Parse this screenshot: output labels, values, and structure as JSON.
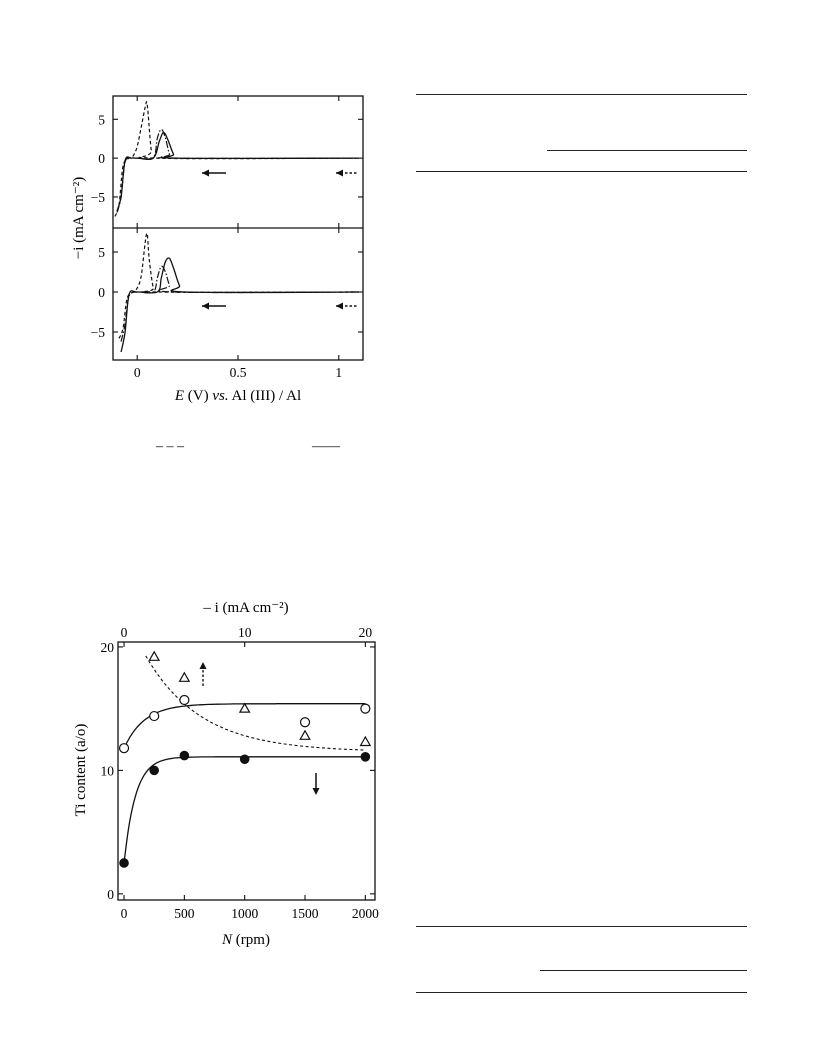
{
  "figure1": {
    "y_label": "−i (mA cm⁻²)",
    "x_label_E": "E",
    "x_label_rest": " (V) ",
    "x_label_vs": "vs.",
    "x_label_ref": " Al (III) / Al",
    "legend_dashed": "– – –",
    "legend_solid": "——"
  },
  "figure2": {
    "x_label_N": "N",
    "x_label_unit": " (rpm)",
    "y_label": "Ti content (a/o)",
    "top_label": "– i  (mA cm⁻²)"
  },
  "chart_data": [
    {
      "type": "line",
      "panel": "upper",
      "xlabel": "E (V) vs. Al (III) / Al",
      "ylabel": "−i (mA cm⁻²)",
      "xlim": [
        -0.12,
        1.12
      ],
      "ylim": [
        -9,
        8
      ],
      "x_ticks": [
        "0",
        "0.5",
        "1"
      ],
      "y_ticks": [
        "5",
        "0",
        "−5"
      ],
      "series": [
        {
          "style": "dashed",
          "x": [
            -0.11,
            -0.09,
            -0.07,
            -0.04,
            -0.02,
            0.0,
            0.02,
            0.04,
            0.05,
            0.07,
            0.09,
            1.1
          ],
          "y": [
            -7.5,
            -6,
            -1,
            0,
            0.3,
            1.5,
            4,
            6.6,
            6.8,
            1,
            0,
            0
          ]
        },
        {
          "style": "solid",
          "x": [
            -0.1,
            -0.08,
            -0.06,
            -0.03,
            0.0,
            0.08,
            0.11,
            0.13,
            0.15,
            0.18,
            0.2,
            1.1
          ],
          "y": [
            -6.8,
            -5,
            -0.3,
            0,
            0,
            0,
            2.2,
            3.3,
            2.5,
            0.5,
            0,
            0
          ]
        },
        {
          "style": "dash-dot",
          "x": [
            -0.1,
            -0.08,
            -0.06,
            -0.03,
            0.0,
            0.08,
            0.1,
            0.12,
            0.14,
            0.16,
            0.18,
            1.1
          ],
          "y": [
            -7,
            -5,
            -0.5,
            0,
            0,
            0.1,
            2.6,
            3.7,
            2.6,
            0.5,
            0,
            0
          ]
        }
      ]
    },
    {
      "type": "line",
      "panel": "lower",
      "xlabel": "E (V) vs. Al (III) / Al",
      "ylabel": "−i (mA cm⁻²)",
      "xlim": [
        -0.12,
        1.12
      ],
      "ylim": [
        -8.5,
        8
      ],
      "x_ticks": [
        "0",
        "0.5",
        "1"
      ],
      "y_ticks": [
        "5",
        "0",
        "−5"
      ],
      "series": [
        {
          "style": "dashed",
          "x": [
            -0.09,
            -0.07,
            -0.05,
            -0.02,
            0.0,
            0.02,
            0.04,
            0.05,
            0.06,
            0.08,
            0.1,
            1.1
          ],
          "y": [
            -5.8,
            -4.5,
            -0.8,
            0,
            0.5,
            2,
            6.3,
            7.2,
            4,
            0.5,
            0,
            0
          ]
        },
        {
          "style": "solid",
          "x": [
            -0.08,
            -0.06,
            -0.04,
            0.0,
            0.1,
            0.12,
            0.14,
            0.16,
            0.18,
            0.21,
            0.24,
            1.1
          ],
          "y": [
            -7.5,
            -5,
            -0.3,
            0,
            0,
            1.8,
            3.8,
            4.2,
            3,
            0.8,
            0,
            0
          ]
        },
        {
          "style": "dash-dot",
          "x": [
            -0.08,
            -0.06,
            -0.04,
            0.0,
            0.08,
            0.1,
            0.12,
            0.14,
            0.16,
            0.18,
            1.1
          ],
          "y": [
            -6.2,
            -4,
            -0.5,
            0,
            0,
            1.8,
            3.2,
            2.5,
            0.8,
            0,
            0
          ]
        }
      ]
    },
    {
      "type": "scatter",
      "xlabel": "N (rpm)",
      "ylabel": "Ti content (a/o)",
      "xlim": [
        -50,
        2080
      ],
      "ylim": [
        -0.5,
        20.4
      ],
      "x_ticks": [
        "0",
        "500",
        "1000",
        "1500",
        "2000"
      ],
      "y_ticks": [
        "20",
        "10",
        "0"
      ],
      "top_axis": {
        "label": "– i  (mA cm⁻²)",
        "lim": [
          -0.5,
          20.8
        ],
        "ticks": [
          "0",
          "10",
          "20"
        ]
      },
      "series": [
        {
          "marker": "open-circle",
          "axis": "bottom",
          "x": [
            0,
            250,
            500,
            1500,
            2000
          ],
          "y": [
            11.8,
            14.4,
            15.7,
            13.9,
            15.0
          ]
        },
        {
          "marker": "filled-circle",
          "axis": "bottom",
          "x": [
            0,
            250,
            500,
            1000,
            2000
          ],
          "y": [
            2.5,
            10.0,
            11.2,
            10.9,
            11.1
          ]
        },
        {
          "marker": "open-triangle",
          "axis": "top",
          "x": [
            2.5,
            5,
            10,
            15,
            20
          ],
          "y": [
            19.2,
            17.5,
            15.0,
            12.8,
            12.3
          ]
        }
      ]
    }
  ]
}
